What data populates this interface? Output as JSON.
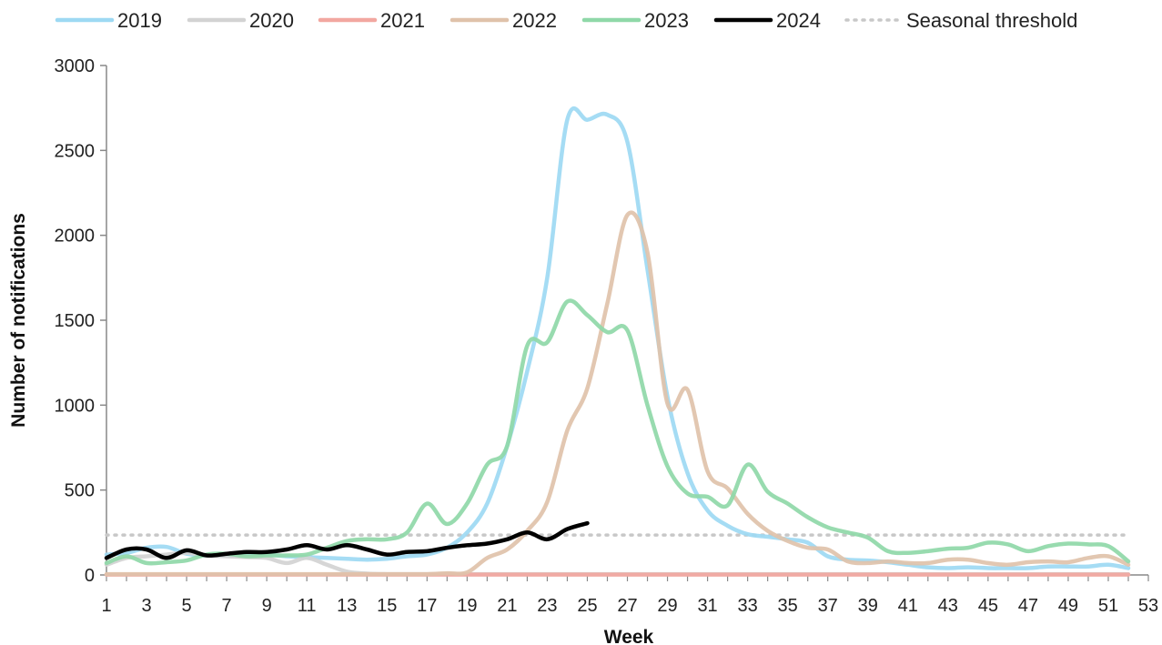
{
  "chart_data": {
    "type": "line",
    "xlabel": "Week",
    "ylabel": "Number of notifications",
    "xlim": [
      1,
      53
    ],
    "ylim": [
      0,
      3000
    ],
    "x_ticks": [
      1,
      3,
      5,
      7,
      9,
      11,
      13,
      15,
      17,
      19,
      21,
      23,
      25,
      27,
      29,
      31,
      33,
      35,
      37,
      39,
      41,
      43,
      45,
      47,
      49,
      51,
      53
    ],
    "y_ticks": [
      0,
      500,
      1000,
      1500,
      2000,
      2500,
      3000
    ],
    "legend_position": "top",
    "grid": false,
    "series": [
      {
        "name": "2019",
        "color": "#9dd9f3",
        "x": [
          1,
          2,
          3,
          4,
          5,
          6,
          7,
          8,
          9,
          10,
          11,
          12,
          13,
          14,
          15,
          16,
          17,
          18,
          19,
          20,
          21,
          22,
          23,
          24,
          25,
          26,
          27,
          28,
          29,
          30,
          31,
          32,
          33,
          34,
          35,
          36,
          37,
          38,
          39,
          40,
          41,
          42,
          43,
          44,
          45,
          46,
          47,
          48,
          49,
          50,
          51,
          52
        ],
        "y": [
          120,
          130,
          160,
          165,
          125,
          115,
          115,
          120,
          120,
          110,
          105,
          100,
          95,
          90,
          95,
          110,
          120,
          160,
          250,
          420,
          760,
          1200,
          1750,
          2680,
          2680,
          2710,
          2550,
          1800,
          1050,
          600,
          380,
          290,
          240,
          225,
          210,
          190,
          110,
          90,
          85,
          75,
          60,
          45,
          40,
          45,
          40,
          40,
          40,
          50,
          50,
          50,
          60,
          40
        ]
      },
      {
        "name": "2020",
        "color": "#d3d3d3",
        "x": [
          1,
          2,
          3,
          4,
          5,
          6,
          7,
          8,
          9,
          10,
          11,
          12,
          13,
          14,
          15,
          16,
          17,
          18,
          19,
          20,
          21,
          22,
          23,
          24,
          25,
          26,
          27,
          28,
          29,
          30,
          31,
          32,
          33,
          34,
          35,
          36,
          37,
          38,
          39,
          40,
          41,
          42,
          43,
          44,
          45,
          46,
          47,
          48,
          49,
          50,
          51,
          52
        ],
        "y": [
          60,
          100,
          110,
          120,
          130,
          115,
          110,
          105,
          100,
          70,
          100,
          60,
          20,
          8,
          5,
          5,
          5,
          5,
          5,
          5,
          5,
          5,
          5,
          5,
          5,
          5,
          5,
          5,
          5,
          5,
          5,
          5,
          5,
          5,
          5,
          5,
          5,
          5,
          5,
          5,
          5,
          5,
          5,
          5,
          5,
          5,
          5,
          5,
          5,
          5,
          5,
          5
        ]
      },
      {
        "name": "2021",
        "color": "#f2a7a0",
        "x": [
          1,
          2,
          3,
          4,
          5,
          6,
          7,
          8,
          9,
          10,
          11,
          12,
          13,
          14,
          15,
          16,
          17,
          18,
          19,
          20,
          21,
          22,
          23,
          24,
          25,
          26,
          27,
          28,
          29,
          30,
          31,
          32,
          33,
          34,
          35,
          36,
          37,
          38,
          39,
          40,
          41,
          42,
          43,
          44,
          45,
          46,
          47,
          48,
          49,
          50,
          51,
          52
        ],
        "y": [
          2,
          2,
          2,
          2,
          2,
          2,
          2,
          2,
          2,
          2,
          2,
          2,
          2,
          2,
          2,
          2,
          2,
          2,
          2,
          2,
          2,
          2,
          2,
          2,
          2,
          2,
          2,
          2,
          2,
          2,
          2,
          2,
          2,
          2,
          2,
          2,
          2,
          2,
          2,
          2,
          2,
          2,
          2,
          2,
          2,
          2,
          2,
          2,
          2,
          2,
          2,
          2
        ]
      },
      {
        "name": "2022",
        "color": "#dfc2aa",
        "x": [
          1,
          2,
          3,
          4,
          5,
          6,
          7,
          8,
          9,
          10,
          11,
          12,
          13,
          14,
          15,
          16,
          17,
          18,
          19,
          20,
          21,
          22,
          23,
          24,
          25,
          26,
          27,
          28,
          29,
          30,
          31,
          32,
          33,
          34,
          35,
          36,
          37,
          38,
          39,
          40,
          41,
          42,
          43,
          44,
          45,
          46,
          47,
          48,
          49,
          50,
          51,
          52
        ],
        "y": [
          5,
          5,
          5,
          5,
          5,
          5,
          5,
          5,
          5,
          5,
          5,
          5,
          5,
          5,
          5,
          5,
          5,
          10,
          15,
          100,
          150,
          260,
          430,
          850,
          1100,
          1600,
          2120,
          1900,
          1010,
          1090,
          610,
          510,
          360,
          260,
          200,
          160,
          150,
          80,
          70,
          80,
          70,
          70,
          90,
          90,
          70,
          60,
          75,
          80,
          75,
          100,
          110,
          60
        ]
      },
      {
        "name": "2023",
        "color": "#8fd8a8",
        "x": [
          1,
          2,
          3,
          4,
          5,
          6,
          7,
          8,
          9,
          10,
          11,
          12,
          13,
          14,
          15,
          16,
          17,
          18,
          19,
          20,
          21,
          22,
          23,
          24,
          25,
          26,
          27,
          28,
          29,
          30,
          31,
          32,
          33,
          34,
          35,
          36,
          37,
          38,
          39,
          40,
          41,
          42,
          43,
          44,
          45,
          46,
          47,
          48,
          49,
          50,
          51,
          52
        ],
        "y": [
          70,
          110,
          70,
          75,
          85,
          120,
          125,
          110,
          115,
          115,
          120,
          160,
          200,
          210,
          210,
          250,
          420,
          300,
          420,
          650,
          760,
          1350,
          1370,
          1610,
          1530,
          1430,
          1440,
          1000,
          640,
          480,
          460,
          410,
          650,
          490,
          420,
          340,
          280,
          250,
          220,
          140,
          130,
          140,
          155,
          160,
          190,
          180,
          140,
          170,
          185,
          180,
          170,
          80
        ]
      },
      {
        "name": "2024",
        "color": "#000000",
        "x": [
          1,
          2,
          3,
          4,
          5,
          6,
          7,
          8,
          9,
          10,
          11,
          12,
          13,
          14,
          15,
          16,
          17,
          18,
          19,
          20,
          21,
          22,
          23,
          24,
          25
        ],
        "y": [
          100,
          150,
          150,
          100,
          145,
          115,
          125,
          135,
          135,
          150,
          175,
          150,
          175,
          150,
          120,
          135,
          140,
          160,
          175,
          185,
          210,
          250,
          210,
          270,
          305
        ]
      }
    ],
    "threshold": {
      "name": "Seasonal threshold",
      "value": 235,
      "color": "#c8c8c8"
    }
  }
}
